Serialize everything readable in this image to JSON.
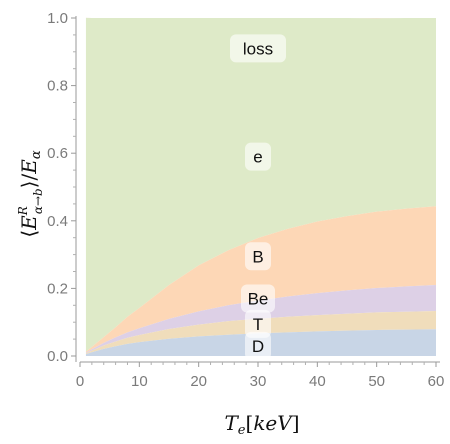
{
  "chart_data": {
    "type": "area",
    "stacked": true,
    "xlabel": "T_e[keV]",
    "ylabel": "⟨E^R_{α→b}⟩/E_α",
    "xlim": [
      0,
      60
    ],
    "ylim": [
      0,
      1.0
    ],
    "xticks": [
      "0",
      "10",
      "20",
      "30",
      "40",
      "50",
      "60"
    ],
    "yticks": [
      "0.0",
      "0.2",
      "0.4",
      "0.6",
      "0.8",
      "1.0"
    ],
    "x": [
      1,
      2,
      4,
      6,
      8,
      10,
      15,
      20,
      25,
      30,
      35,
      40,
      45,
      50,
      55,
      60
    ],
    "series": [
      {
        "name": "D",
        "color": "#c8d5e6",
        "values": [
          0.0055,
          0.011,
          0.021,
          0.029,
          0.036,
          0.041,
          0.051,
          0.058,
          0.063,
          0.067,
          0.07,
          0.073,
          0.075,
          0.077,
          0.078,
          0.079
        ]
      },
      {
        "name": "T",
        "color": "#f0ddbb",
        "values": [
          0.0025,
          0.005,
          0.01,
          0.014,
          0.018,
          0.021,
          0.029,
          0.035,
          0.04,
          0.043,
          0.046,
          0.048,
          0.05,
          0.052,
          0.053,
          0.054
        ]
      },
      {
        "name": "Be",
        "color": "#ddd0e6",
        "values": [
          0.002,
          0.004,
          0.008,
          0.012,
          0.016,
          0.02,
          0.03,
          0.039,
          0.047,
          0.054,
          0.06,
          0.065,
          0.069,
          0.072,
          0.075,
          0.077
        ]
      },
      {
        "name": "B",
        "color": "#fdd7b6",
        "values": [
          0.003,
          0.007,
          0.017,
          0.03,
          0.046,
          0.06,
          0.1,
          0.136,
          0.163,
          0.185,
          0.2,
          0.212,
          0.22,
          0.226,
          0.23,
          0.233
        ]
      },
      {
        "name": "e",
        "color": "#deeac8",
        "values": [
          0.9875,
          0.973,
          0.944,
          0.915,
          0.884,
          0.858,
          0.79,
          0.732,
          0.687,
          0.651,
          0.624,
          0.602,
          0.586,
          0.572,
          0.564,
          0.557
        ]
      },
      {
        "name": "loss",
        "color": "#f7cfc3",
        "values": [
          0.0,
          0.0,
          0.0,
          0.0,
          0.0,
          0.0,
          0.0,
          0.0,
          0.0,
          0.0,
          0.0,
          0.0,
          0.0,
          0.0,
          0.0,
          0.0
        ]
      }
    ],
    "region_labels": [
      {
        "text": "loss",
        "x": 30,
        "y": 0.91
      },
      {
        "text": "e",
        "x": 30,
        "y": 0.59
      },
      {
        "text": "B",
        "x": 30,
        "y": 0.295
      },
      {
        "text": "Be",
        "x": 30,
        "y": 0.17
      },
      {
        "text": "T",
        "x": 30,
        "y": 0.095
      },
      {
        "text": "D",
        "x": 30,
        "y": 0.03
      }
    ],
    "grid": false,
    "legend": "none"
  }
}
